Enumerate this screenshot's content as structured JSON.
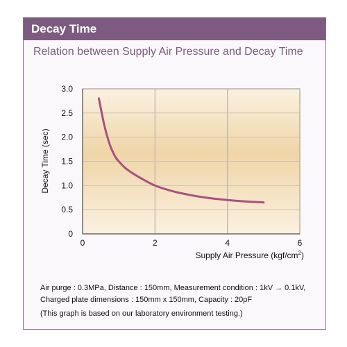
{
  "header": {
    "title": "Decay Time"
  },
  "subtitle": "Relation between Supply Air Pressure and Decay Time",
  "colors": {
    "accent": "#7d5a80",
    "curve": "#a8507e",
    "plot_light": "#fbf1e1",
    "plot_dark": "#efd5a7"
  },
  "chart_data": {
    "type": "line",
    "title": "Relation between Supply Air Pressure and Decay Time",
    "xlabel": "Supply Air Pressure (kgf/cm",
    "xlabel_sup": "2",
    "xlabel_end": ")",
    "ylabel": "Decay Time (sec)",
    "xlim": [
      0,
      6
    ],
    "ylim": [
      0,
      3.0
    ],
    "x_ticks": [
      0,
      2,
      4,
      6
    ],
    "x_tick_labels": [
      "0",
      "2",
      "4",
      "6"
    ],
    "y_ticks": [
      0,
      0.5,
      1.0,
      1.5,
      2.0,
      2.5,
      3.0
    ],
    "y_tick_labels": [
      "0",
      "0.5",
      "1.0",
      "1.5",
      "2.0",
      "2.5",
      "3.0"
    ],
    "grid": true,
    "series": [
      {
        "x": [
          0.45,
          0.6,
          0.75,
          0.9,
          1.0,
          1.2,
          1.5,
          2.0,
          2.5,
          3.0,
          3.5,
          4.0,
          4.5,
          5.0
        ],
        "y": [
          2.8,
          2.25,
          1.85,
          1.6,
          1.5,
          1.35,
          1.2,
          1.0,
          0.88,
          0.8,
          0.74,
          0.7,
          0.67,
          0.65
        ]
      }
    ]
  },
  "notes": [
    "Air purge : 0.3MPa, Distance : 150mm, Measurement condition : 1kV → 0.1kV,",
    "Charged plate dimensions : 150mm x 150mm,  Capacity : 20pF",
    "(This graph is based on our laboratory environment testing.)"
  ]
}
